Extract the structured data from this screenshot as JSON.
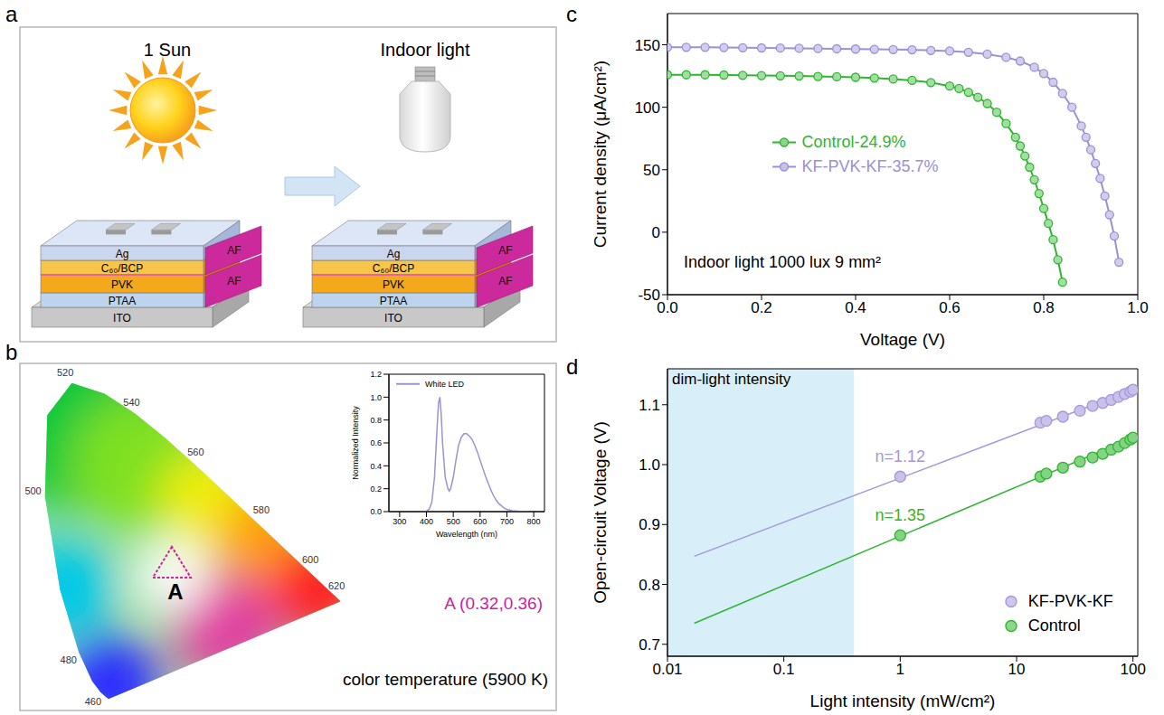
{
  "panel_a": {
    "letter": "a",
    "left_title": "1 Sun",
    "right_title": "Indoor light",
    "layers": [
      "Ag",
      "C₆₀/BCP",
      "PVK",
      "PTAA",
      "ITO"
    ],
    "side_layer": "AF"
  },
  "panel_b": {
    "letter": "b",
    "wavelength_labels": [
      520,
      540,
      560,
      580,
      600,
      620,
      500,
      480,
      460
    ],
    "point": {
      "label": "A",
      "x": 0.32,
      "y": 0.36,
      "text": "A (0.32,0.36)"
    },
    "note": "color temperature (5900 K)"
  },
  "chart_data": [
    {
      "type": "line",
      "x_label": "Wavelength (nm)",
      "y_label": "Normalized Intensity",
      "xlim": [
        260,
        840
      ],
      "xticks": [
        300,
        400,
        500,
        600,
        700,
        800
      ],
      "ylim": [
        0,
        1.2
      ],
      "yticks": [
        {
          "value": 0,
          "label": "0.0"
        },
        {
          "value": 0.2,
          "label": "0.2"
        },
        {
          "value": 0.4,
          "label": "0.4"
        },
        {
          "value": 0.6,
          "label": "0.6"
        },
        {
          "value": 0.8,
          "label": "0.8"
        },
        {
          "value": 1,
          "label": "1.0"
        },
        {
          "value": 1.2,
          "label": "1.2"
        }
      ],
      "legend": "upper left",
      "series": [
        {
          "name": "White LED",
          "color": "#9d93d4",
          "x": [
            380,
            390,
            400,
            410,
            420,
            430,
            440,
            445,
            450,
            455,
            460,
            470,
            480,
            485,
            490,
            500,
            510,
            520,
            530,
            540,
            550,
            560,
            570,
            580,
            590,
            600,
            610,
            620,
            630,
            640,
            650,
            660,
            670,
            680,
            690,
            700,
            720,
            750,
            780
          ],
          "values": [
            0,
            0,
            0.005,
            0.02,
            0.08,
            0.3,
            0.75,
            0.95,
            1.0,
            0.85,
            0.6,
            0.3,
            0.2,
            0.18,
            0.2,
            0.3,
            0.45,
            0.58,
            0.65,
            0.68,
            0.68,
            0.66,
            0.63,
            0.58,
            0.52,
            0.45,
            0.38,
            0.31,
            0.25,
            0.19,
            0.14,
            0.1,
            0.07,
            0.05,
            0.03,
            0.02,
            0.008,
            0.002,
            0
          ]
        }
      ]
    },
    {
      "panel": "c",
      "type": "line",
      "x_label": "Voltage (V)",
      "y_label": "Current density (μA/cm²)",
      "annotation": "Indoor light 1000 lux 9 mm²",
      "xlim": [
        0,
        1
      ],
      "xticks": [
        {
          "value": 0,
          "label": "0.0"
        },
        {
          "value": 0.2,
          "label": "0.2"
        },
        {
          "value": 0.4,
          "label": "0.4"
        },
        {
          "value": 0.6,
          "label": "0.6"
        },
        {
          "value": 0.8,
          "label": "0.8"
        },
        {
          "value": 1,
          "label": "1.0"
        }
      ],
      "ylim": [
        -50,
        175
      ],
      "yticks": [
        -50,
        0,
        50,
        100,
        150
      ],
      "legend": "center left",
      "series": [
        {
          "name": "Control-24.9%",
          "color": "#2fb52f",
          "marker": "circle",
          "x": [
            0,
            0.04,
            0.08,
            0.12,
            0.16,
            0.2,
            0.24,
            0.28,
            0.32,
            0.36,
            0.4,
            0.44,
            0.48,
            0.52,
            0.56,
            0.6,
            0.62,
            0.64,
            0.66,
            0.68,
            0.7,
            0.72,
            0.74,
            0.75,
            0.76,
            0.77,
            0.78,
            0.79,
            0.8,
            0.81,
            0.82,
            0.83,
            0.84
          ],
          "values": [
            126,
            126,
            126,
            125.8,
            125.6,
            125.4,
            125.2,
            125,
            124.7,
            124.4,
            124,
            123.4,
            122.6,
            121.5,
            119.8,
            117,
            115,
            112,
            108,
            103,
            96,
            87,
            76,
            69,
            61,
            52,
            42,
            31,
            19,
            7,
            -6,
            -22,
            -40
          ]
        },
        {
          "name": "KF-PVK-KF-35.7%",
          "color": "#9b8fd6",
          "marker": "circle",
          "x": [
            0,
            0.04,
            0.08,
            0.12,
            0.16,
            0.2,
            0.24,
            0.28,
            0.32,
            0.36,
            0.4,
            0.44,
            0.48,
            0.52,
            0.56,
            0.6,
            0.64,
            0.68,
            0.72,
            0.75,
            0.78,
            0.8,
            0.82,
            0.84,
            0.86,
            0.88,
            0.89,
            0.9,
            0.91,
            0.92,
            0.93,
            0.94,
            0.95,
            0.96
          ],
          "values": [
            148,
            148,
            148,
            147.8,
            147.6,
            147.5,
            147.4,
            147.2,
            147,
            146.8,
            146.6,
            146.4,
            146.2,
            146,
            145.5,
            145,
            144,
            142.5,
            140,
            137,
            132,
            127,
            120,
            111,
            100,
            85,
            76,
            66,
            55,
            43,
            29,
            14,
            -3,
            -24
          ]
        }
      ]
    },
    {
      "panel": "d",
      "type": "scatter",
      "log": "x",
      "x_label": "Light intensity (mW/cm²)",
      "y_label": "Open-circuit Voltage (V)",
      "xlim": [
        0.01,
        110
      ],
      "xticks": [
        0.01,
        0.1,
        1,
        10,
        100
      ],
      "ylim": [
        0.68,
        1.16
      ],
      "yticks": [
        0.7,
        0.8,
        0.9,
        {
          "value": 1,
          "label": "1.0"
        },
        1.1
      ],
      "legend": "lower right",
      "shaded_region": {
        "label": "dim-light intensity",
        "x": [
          0.01,
          0.4
        ]
      },
      "series": [
        {
          "name": "KF-PVK-KF",
          "color": "#a597dc",
          "marker": "circle",
          "x": [
            1,
            16,
            18,
            25,
            35,
            45,
            55,
            65,
            75,
            85,
            95,
            100
          ],
          "values": [
            0.98,
            1.07,
            1.073,
            1.08,
            1.09,
            1.098,
            1.103,
            1.108,
            1.113,
            1.118,
            1.122,
            1.125
          ],
          "fit": {
            "label": "n=1.12",
            "x": [
              0.017,
              100
            ],
            "values": [
              0.847,
              1.125
            ]
          }
        },
        {
          "name": "Control",
          "color": "#2fb52f",
          "marker": "circle",
          "x": [
            1,
            16,
            18,
            25,
            35,
            45,
            55,
            65,
            75,
            85,
            95,
            100
          ],
          "values": [
            0.882,
            0.98,
            0.985,
            0.995,
            1.005,
            1.012,
            1.018,
            1.025,
            1.03,
            1.036,
            1.042,
            1.045
          ],
          "fit": {
            "label": "n=1.35",
            "x": [
              0.017,
              100
            ],
            "values": [
              0.735,
              1.045
            ]
          }
        }
      ]
    }
  ]
}
